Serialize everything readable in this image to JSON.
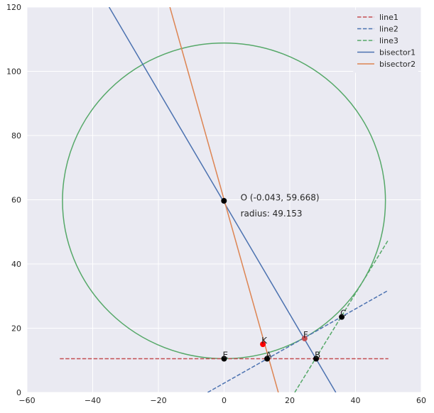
{
  "chart_data": {
    "type": "line",
    "xlim": [
      -60,
      60
    ],
    "ylim": [
      0,
      120
    ],
    "xticks": [
      -60,
      -40,
      -20,
      0,
      20,
      40,
      60
    ],
    "yticks": [
      0,
      20,
      40,
      60,
      80,
      100,
      120
    ],
    "grid": true,
    "background": "#eaeaf2",
    "legend_position": "top-right",
    "series": [
      {
        "name": "line1",
        "style": "dashed",
        "color": "#c44e52",
        "x": [
          -50,
          50
        ],
        "y": [
          10.5,
          10.5
        ]
      },
      {
        "name": "line2",
        "style": "dashed",
        "color": "#4c72b0",
        "x": [
          -5,
          50
        ],
        "y": [
          0,
          31.8
        ]
      },
      {
        "name": "line3",
        "style": "dashed",
        "color": "#55a868",
        "x": [
          21.5,
          50
        ],
        "y": [
          0,
          47.5
        ]
      },
      {
        "name": "bisector1",
        "style": "solid",
        "color": "#4c72b0",
        "x": [
          -35,
          34
        ],
        "y": [
          120,
          0
        ]
      },
      {
        "name": "bisector2",
        "style": "solid",
        "color": "#dd8452",
        "x": [
          -16.5,
          16.5
        ],
        "y": [
          120,
          0
        ]
      }
    ],
    "circle": {
      "center": [
        -0.043,
        59.668
      ],
      "radius": 49.153,
      "color": "#55a868"
    },
    "points": [
      {
        "label": "",
        "x": -0.043,
        "y": 59.668,
        "color": "#000000"
      },
      {
        "label": "E",
        "x": 0,
        "y": 10.5,
        "color": "#000000"
      },
      {
        "label": "A",
        "x": 13.1,
        "y": 10.5,
        "color": "#000000"
      },
      {
        "label": "B",
        "x": 28,
        "y": 10.5,
        "color": "#000000"
      },
      {
        "label": "C",
        "x": 35.8,
        "y": 23.5,
        "color": "#000000"
      },
      {
        "label": "K",
        "x": 11.8,
        "y": 15,
        "color": "#ff0000"
      },
      {
        "label": "F",
        "x": 24.5,
        "y": 16.8,
        "color": "#c44e52"
      }
    ],
    "annotations": [
      {
        "text": "O (-0.043, 59.668)",
        "x": 5,
        "y": 60
      },
      {
        "text": "radius: 49.153",
        "x": 5,
        "y": 55
      }
    ]
  }
}
